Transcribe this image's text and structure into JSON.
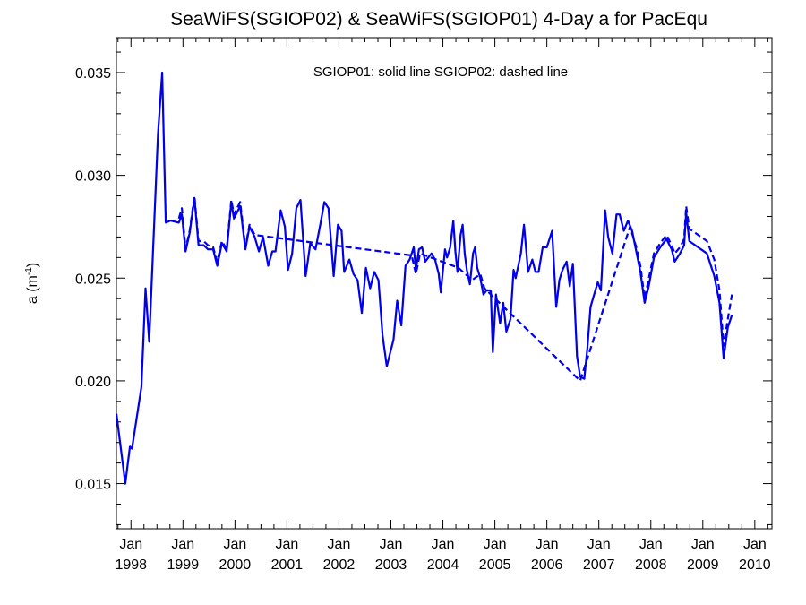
{
  "chart_data": {
    "type": "line",
    "title": "SeaWiFS(SGIOP02) & SeaWiFS(SGIOP01) 4-Day a for PacEqu",
    "annotation": "SGIOP01: solid line   SGIOP02: dashed line",
    "ylabel": "a (m",
    "ylabel_sup": "-1",
    "ylabel_close": ")",
    "ylim": [
      0.0128,
      0.0367
    ],
    "xlim": [
      1997.72,
      2010.33
    ],
    "yticks": [
      {
        "value": 0.015,
        "label": "0.015"
      },
      {
        "value": 0.02,
        "label": "0.020"
      },
      {
        "value": 0.025,
        "label": "0.025"
      },
      {
        "value": 0.03,
        "label": "0.030"
      },
      {
        "value": 0.035,
        "label": "0.035"
      }
    ],
    "xticks": [
      {
        "value": 1998,
        "month": "Jan",
        "year": "1998"
      },
      {
        "value": 1999,
        "month": "Jan",
        "year": "1999"
      },
      {
        "value": 2000,
        "month": "Jan",
        "year": "2000"
      },
      {
        "value": 2001,
        "month": "Jan",
        "year": "2001"
      },
      {
        "value": 2002,
        "month": "Jan",
        "year": "2002"
      },
      {
        "value": 2003,
        "month": "Jan",
        "year": "2003"
      },
      {
        "value": 2004,
        "month": "Jan",
        "year": "2004"
      },
      {
        "value": 2005,
        "month": "Jan",
        "year": "2005"
      },
      {
        "value": 2006,
        "month": "Jan",
        "year": "2006"
      },
      {
        "value": 2007,
        "month": "Jan",
        "year": "2007"
      },
      {
        "value": 2008,
        "month": "Jan",
        "year": "2008"
      },
      {
        "value": 2009,
        "month": "Jan",
        "year": "2009"
      },
      {
        "value": 2010,
        "month": "Jan",
        "year": "2010"
      }
    ],
    "grid": false,
    "color": "#0000ee",
    "series": [
      {
        "name": "SGIOP01",
        "style": "solid",
        "points": [
          [
            1997.72,
            0.0184
          ],
          [
            1997.79,
            0.017
          ],
          [
            1997.89,
            0.015
          ],
          [
            1997.98,
            0.0168
          ],
          [
            1998.02,
            0.0167
          ],
          [
            1998.2,
            0.0197
          ],
          [
            1998.28,
            0.0245
          ],
          [
            1998.35,
            0.0219
          ],
          [
            1998.52,
            0.032
          ],
          [
            1998.6,
            0.035
          ],
          [
            1998.67,
            0.0277
          ],
          [
            1998.76,
            0.0278
          ],
          [
            1998.92,
            0.0277
          ],
          [
            1998.98,
            0.0281
          ],
          [
            1999.05,
            0.0263
          ],
          [
            1999.13,
            0.0272
          ],
          [
            1999.22,
            0.0289
          ],
          [
            1999.3,
            0.0266
          ],
          [
            1999.4,
            0.0266
          ],
          [
            1999.48,
            0.0264
          ],
          [
            1999.58,
            0.0264
          ],
          [
            1999.66,
            0.0256
          ],
          [
            1999.75,
            0.0267
          ],
          [
            1999.84,
            0.0263
          ],
          [
            1999.93,
            0.0287
          ],
          [
            1999.98,
            0.0279
          ],
          [
            2000.1,
            0.0285
          ],
          [
            2000.2,
            0.0264
          ],
          [
            2000.28,
            0.0275
          ],
          [
            2000.38,
            0.027
          ],
          [
            2000.46,
            0.0263
          ],
          [
            2000.54,
            0.027
          ],
          [
            2000.64,
            0.0256
          ],
          [
            2000.72,
            0.0263
          ],
          [
            2000.78,
            0.0263
          ],
          [
            2000.88,
            0.0283
          ],
          [
            2000.96,
            0.0275
          ],
          [
            2001.02,
            0.0254
          ],
          [
            2001.1,
            0.0262
          ],
          [
            2001.18,
            0.0284
          ],
          [
            2001.26,
            0.0288
          ],
          [
            2001.36,
            0.0251
          ],
          [
            2001.45,
            0.0267
          ],
          [
            2001.55,
            0.0264
          ],
          [
            2001.64,
            0.0276
          ],
          [
            2001.72,
            0.0287
          ],
          [
            2001.8,
            0.0284
          ],
          [
            2001.9,
            0.0251
          ],
          [
            2001.98,
            0.0276
          ],
          [
            2002.05,
            0.0273
          ],
          [
            2002.1,
            0.0253
          ],
          [
            2002.2,
            0.0259
          ],
          [
            2002.28,
            0.0252
          ],
          [
            2002.36,
            0.0249
          ],
          [
            2002.44,
            0.0233
          ],
          [
            2002.52,
            0.0255
          ],
          [
            2002.6,
            0.0245
          ],
          [
            2002.68,
            0.0253
          ],
          [
            2002.76,
            0.0249
          ],
          [
            2002.84,
            0.0222
          ],
          [
            2002.92,
            0.0207
          ],
          [
            2002.98,
            0.0213
          ],
          [
            2003.05,
            0.022
          ],
          [
            2003.12,
            0.0239
          ],
          [
            2003.2,
            0.0227
          ],
          [
            2003.28,
            0.0256
          ],
          [
            2003.36,
            0.0259
          ],
          [
            2003.44,
            0.0265
          ],
          [
            2003.48,
            0.0254
          ],
          [
            2003.54,
            0.0264
          ],
          [
            2003.6,
            0.0265
          ],
          [
            2003.66,
            0.0258
          ],
          [
            2003.72,
            0.026
          ],
          [
            2003.78,
            0.0262
          ],
          [
            2003.85,
            0.0259
          ],
          [
            2003.92,
            0.0252
          ],
          [
            2003.96,
            0.0243
          ],
          [
            2004.04,
            0.0264
          ],
          [
            2004.08,
            0.026
          ],
          [
            2004.14,
            0.0265
          ],
          [
            2004.2,
            0.0278
          ],
          [
            2004.24,
            0.0263
          ],
          [
            2004.28,
            0.0253
          ],
          [
            2004.34,
            0.0271
          ],
          [
            2004.38,
            0.0276
          ],
          [
            2004.42,
            0.0262
          ],
          [
            2004.46,
            0.0254
          ],
          [
            2004.52,
            0.0247
          ],
          [
            2004.58,
            0.0262
          ],
          [
            2004.62,
            0.0265
          ],
          [
            2004.66,
            0.0255
          ],
          [
            2004.72,
            0.025
          ],
          [
            2004.78,
            0.0242
          ],
          [
            2004.84,
            0.0244
          ],
          [
            2004.92,
            0.0244
          ],
          [
            2004.96,
            0.0214
          ],
          [
            2005.02,
            0.0242
          ],
          [
            2005.1,
            0.0228
          ],
          [
            2005.16,
            0.0238
          ],
          [
            2005.22,
            0.0224
          ],
          [
            2005.3,
            0.023
          ],
          [
            2005.36,
            0.0254
          ],
          [
            2005.4,
            0.025
          ],
          [
            2005.5,
            0.0262
          ],
          [
            2005.56,
            0.0276
          ],
          [
            2005.64,
            0.0253
          ],
          [
            2005.72,
            0.0259
          ],
          [
            2005.78,
            0.0253
          ],
          [
            2005.84,
            0.0253
          ],
          [
            2005.92,
            0.0265
          ],
          [
            2006.0,
            0.0265
          ],
          [
            2006.1,
            0.0273
          ],
          [
            2006.18,
            0.0236
          ],
          [
            2006.24,
            0.0249
          ],
          [
            2006.3,
            0.0254
          ],
          [
            2006.38,
            0.0258
          ],
          [
            2006.44,
            0.0246
          ],
          [
            2006.5,
            0.0257
          ],
          [
            2006.58,
            0.0212
          ],
          [
            2006.64,
            0.0202
          ],
          [
            2006.72,
            0.0201
          ],
          [
            2006.78,
            0.0216
          ],
          [
            2006.84,
            0.0236
          ],
          [
            2006.92,
            0.0243
          ],
          [
            2006.98,
            0.0248
          ],
          [
            2007.04,
            0.0244
          ],
          [
            2007.12,
            0.0283
          ],
          [
            2007.18,
            0.027
          ],
          [
            2007.26,
            0.0262
          ],
          [
            2007.34,
            0.0281
          ],
          [
            2007.4,
            0.0281
          ],
          [
            2007.48,
            0.0273
          ],
          [
            2007.56,
            0.0278
          ],
          [
            2007.64,
            0.0273
          ],
          [
            2007.72,
            0.0263
          ],
          [
            2007.8,
            0.0253
          ],
          [
            2007.88,
            0.0238
          ],
          [
            2007.96,
            0.0246
          ],
          [
            2008.06,
            0.026
          ],
          [
            2008.18,
            0.0265
          ],
          [
            2008.3,
            0.0269
          ],
          [
            2008.4,
            0.0264
          ],
          [
            2008.46,
            0.0258
          ],
          [
            2008.56,
            0.0262
          ],
          [
            2008.64,
            0.0266
          ],
          [
            2008.68,
            0.0282
          ],
          [
            2008.74,
            0.0268
          ],
          [
            2009.08,
            0.0262
          ],
          [
            2009.22,
            0.0251
          ],
          [
            2009.32,
            0.0238
          ],
          [
            2009.4,
            0.0211
          ],
          [
            2009.48,
            0.0226
          ],
          [
            2009.56,
            0.0232
          ]
        ]
      },
      {
        "name": "SGIOP02",
        "style": "dashed",
        "points": [
          [
            1998.92,
            0.0279
          ],
          [
            1998.98,
            0.0284
          ],
          [
            1999.05,
            0.0264
          ],
          [
            1999.13,
            0.0273
          ],
          [
            1999.22,
            0.029
          ],
          [
            1999.3,
            0.0268
          ],
          [
            1999.4,
            0.0268
          ],
          [
            1999.48,
            0.0266
          ],
          [
            1999.58,
            0.0265
          ],
          [
            1999.66,
            0.0258
          ],
          [
            1999.75,
            0.0268
          ],
          [
            1999.84,
            0.0264
          ],
          [
            1999.93,
            0.0288
          ],
          [
            1999.98,
            0.0281
          ],
          [
            2000.1,
            0.0287
          ],
          [
            2000.2,
            0.0265
          ],
          [
            2000.28,
            0.0276
          ],
          [
            2000.38,
            0.0271
          ],
          [
            2003.4,
            0.0261
          ],
          [
            2003.48,
            0.0252
          ],
          [
            2003.56,
            0.0262
          ],
          [
            2004.3,
            0.0255
          ],
          [
            2004.56,
            0.0249
          ],
          [
            2004.72,
            0.0252
          ],
          [
            2004.8,
            0.0245
          ],
          [
            2006.64,
            0.02
          ],
          [
            2007.6,
            0.0275
          ],
          [
            2007.72,
            0.0265
          ],
          [
            2007.8,
            0.0256
          ],
          [
            2007.88,
            0.024
          ],
          [
            2008.06,
            0.0262
          ],
          [
            2008.18,
            0.0267
          ],
          [
            2008.3,
            0.0271
          ],
          [
            2008.4,
            0.0266
          ],
          [
            2008.46,
            0.0262
          ],
          [
            2008.56,
            0.0265
          ],
          [
            2008.64,
            0.0269
          ],
          [
            2008.68,
            0.0285
          ],
          [
            2008.74,
            0.0274
          ],
          [
            2009.08,
            0.0268
          ],
          [
            2009.22,
            0.0259
          ],
          [
            2009.32,
            0.0244
          ],
          [
            2009.4,
            0.0217
          ],
          [
            2009.48,
            0.023
          ],
          [
            2009.56,
            0.0242
          ]
        ]
      }
    ]
  }
}
